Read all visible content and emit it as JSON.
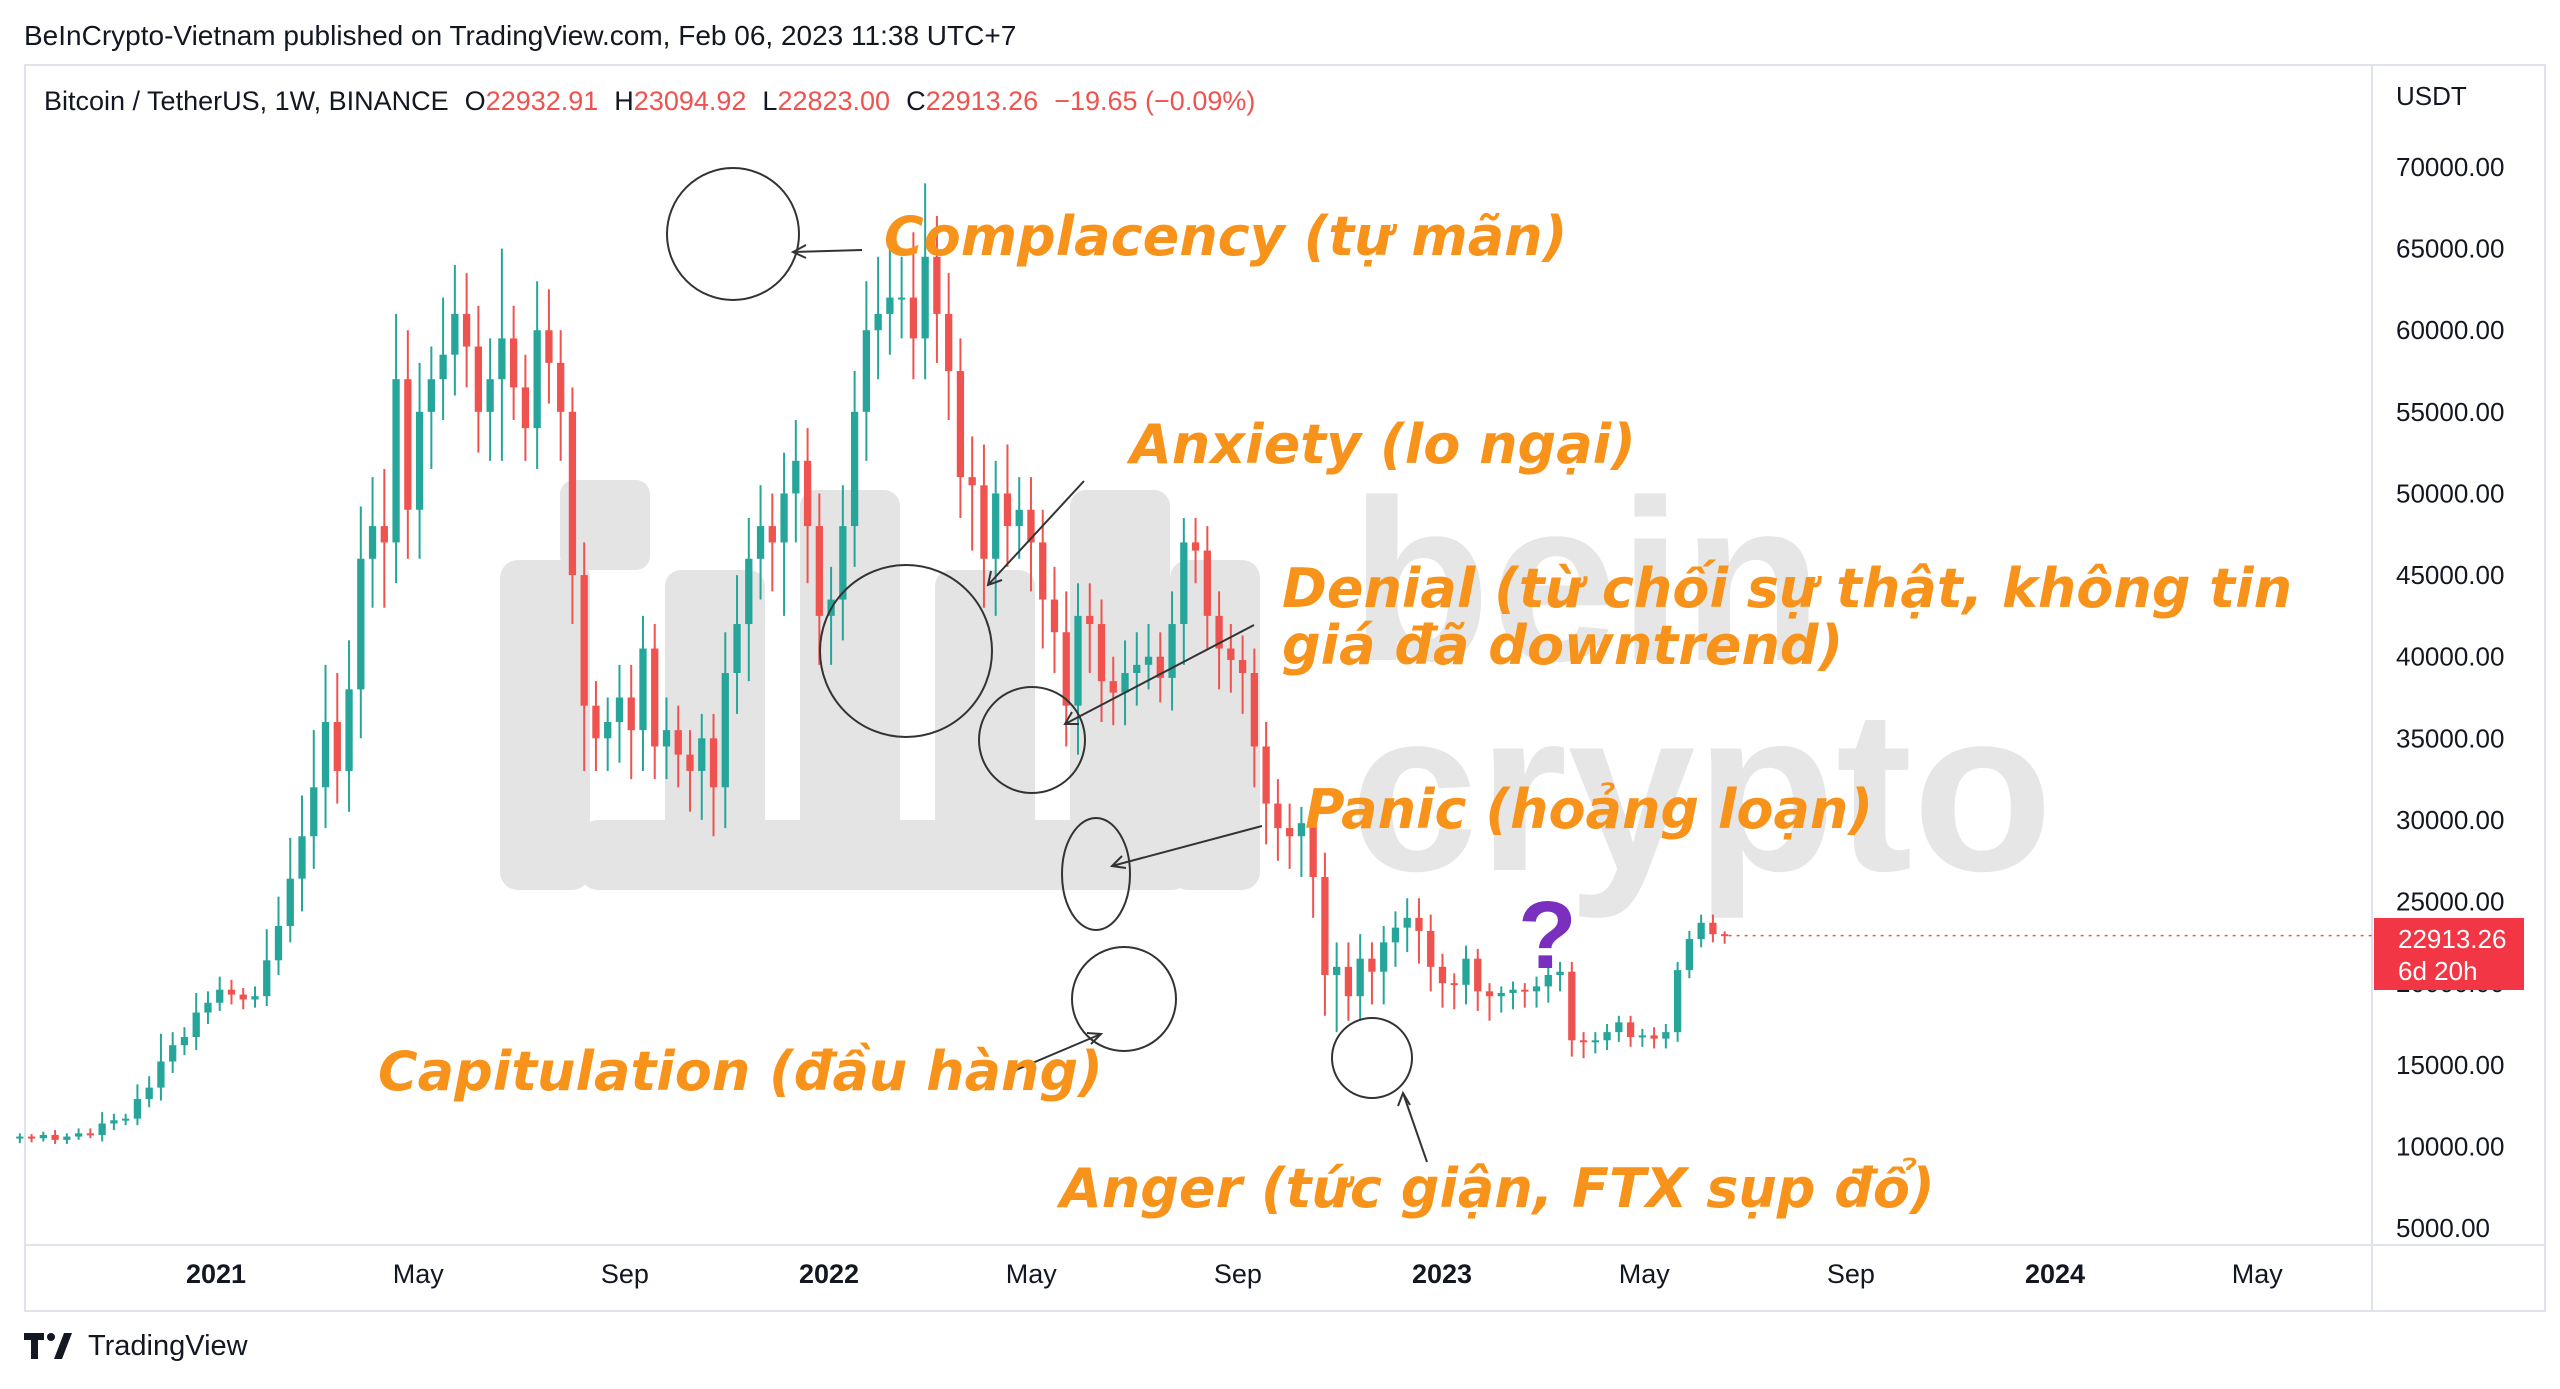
{
  "publisher_line": "BeInCrypto-Vietnam published on TradingView.com, Feb 06, 2023 11:38 UTC+7",
  "legend": {
    "symbol": "Bitcoin / TetherUS, 1W, BINANCE",
    "open_key": "O",
    "open": "22932.91",
    "high_key": "H",
    "high": "23094.92",
    "low_key": "L",
    "low": "22823.00",
    "close_key": "C",
    "close": "22913.26",
    "change": "−19.65 (−0.09%)"
  },
  "footer_brand": "TradingView",
  "watermark": {
    "top": "bein",
    "bottom": "crypto"
  },
  "colors": {
    "up": "#26a69a",
    "down": "#ef5350",
    "annotation": "#f7931a",
    "question": "#7b2fbe",
    "price_tag": "#f23645"
  },
  "chart_data": {
    "type": "candlestick",
    "currency": "USDT",
    "ylim": [
      3000,
      74000
    ],
    "y_ticks": [
      "70000.00",
      "65000.00",
      "60000.00",
      "55000.00",
      "50000.00",
      "45000.00",
      "40000.00",
      "35000.00",
      "30000.00",
      "25000.00",
      "20000.00",
      "15000.00",
      "10000.00",
      "5000.00"
    ],
    "x_ticks": [
      {
        "label": "2021",
        "bold": true,
        "t": 2021.0
      },
      {
        "label": "May",
        "bold": false,
        "t": 2021.33
      },
      {
        "label": "Sep",
        "bold": false,
        "t": 2021.667
      },
      {
        "label": "2022",
        "bold": true,
        "t": 2022.0
      },
      {
        "label": "May",
        "bold": false,
        "t": 2022.33
      },
      {
        "label": "Sep",
        "bold": false,
        "t": 2022.667
      },
      {
        "label": "2023",
        "bold": true,
        "t": 2023.0
      },
      {
        "label": "May",
        "bold": false,
        "t": 2023.33
      },
      {
        "label": "Sep",
        "bold": false,
        "t": 2023.667
      },
      {
        "label": "2024",
        "bold": true,
        "t": 2024.0
      },
      {
        "label": "May",
        "bold": false,
        "t": 2024.33
      }
    ],
    "first_candle_t": 2020.68,
    "candle_step": 0.01918,
    "closes": [
      10600,
      10500,
      10700,
      10400,
      10600,
      10800,
      10700,
      11400,
      11600,
      11700,
      12900,
      13600,
      15200,
      16200,
      16700,
      18200,
      18800,
      19600,
      19300,
      19000,
      19200,
      21400,
      23500,
      26400,
      29000,
      32000,
      36000,
      33000,
      38000,
      46000,
      48000,
      47000,
      57000,
      49000,
      55000,
      57000,
      58500,
      61000,
      59000,
      55000,
      57000,
      59500,
      56500,
      54000,
      60000,
      58000,
      55000,
      45000,
      37000,
      35000,
      36000,
      37500,
      35500,
      40500,
      34500,
      35500,
      34000,
      33000,
      35000,
      32000,
      39000,
      42000,
      46000,
      48000,
      47000,
      50000,
      52000,
      48000,
      42500,
      43500,
      48000,
      55000,
      60000,
      61000,
      62000,
      62000,
      59500,
      64500,
      61000,
      57500,
      51000,
      50500,
      46000,
      50000,
      48000,
      49000,
      47000,
      43500,
      41500,
      37000,
      42500,
      42000,
      38500,
      37800,
      39000,
      39500,
      40000,
      38700,
      42000,
      47000,
      46500,
      42500,
      40500,
      39800,
      39000,
      34500,
      31000,
      29500,
      29000,
      29800,
      26500,
      20500,
      21000,
      19200,
      21500,
      20700,
      22500,
      23400,
      24000,
      23200,
      21000,
      20000,
      19900,
      21500,
      19500,
      19200,
      19400,
      19600,
      19500,
      19800,
      20500,
      20700,
      16500,
      16400,
      16500,
      17000,
      17600,
      16700,
      16800,
      16600,
      17000,
      20800,
      22700,
      23700,
      23000,
      22913.26
    ],
    "wick_up": [
      200,
      150,
      200,
      300,
      200,
      300,
      300,
      700,
      400,
      300,
      900,
      700,
      1700,
      800,
      600,
      1200,
      700,
      800,
      600,
      400,
      600,
      1900,
      1800,
      2500,
      2500,
      3500,
      3500,
      3000,
      3000,
      3200,
      3000,
      3500,
      4000,
      3000,
      3000,
      2000,
      3500,
      3000,
      2500,
      2500,
      2500,
      5500,
      2000,
      2000,
      3000,
      2500,
      2000,
      1500,
      2000,
      1500,
      1500,
      2000,
      2000,
      2000,
      1500,
      2000,
      1500,
      1500,
      1500,
      1500,
      2500,
      3000,
      2500,
      2500,
      2000,
      2500,
      2500,
      2000,
      2000,
      2000,
      2500,
      2500,
      3000,
      3500,
      3000,
      2500,
      4000,
      4500,
      2500,
      2500,
      2000,
      2500,
      2500,
      2000,
      3000,
      2000,
      2000,
      2000,
      2000,
      2500,
      2000,
      2000,
      1500,
      1500,
      2000,
      2000,
      2000,
      1500,
      2000,
      1500,
      1500,
      1500,
      1500,
      1500,
      1500,
      1500,
      1500,
      1500,
      1500,
      1000,
      1500,
      1500,
      1500,
      1500,
      1500,
      1000,
      1000,
      1000,
      1200,
      1200,
      1000,
      800,
      600,
      800,
      600,
      500,
      400,
      500,
      400,
      600,
      600,
      600,
      600,
      500,
      500,
      500,
      400,
      400,
      400,
      500,
      500,
      500,
      500,
      500,
      500,
      180
    ],
    "wick_dn": [
      300,
      250,
      200,
      250,
      250,
      200,
      200,
      400,
      400,
      300,
      400,
      500,
      800,
      700,
      600,
      800,
      700,
      500,
      600,
      600,
      500,
      600,
      900,
      1000,
      2000,
      2000,
      2500,
      2000,
      2500,
      3000,
      3000,
      4000,
      2500,
      3000,
      3000,
      3500,
      2500,
      2500,
      2500,
      2500,
      3000,
      5000,
      2000,
      2000,
      2500,
      2500,
      3000,
      3000,
      4000,
      2000,
      2000,
      2500,
      3000,
      2500,
      2000,
      2000,
      2000,
      2500,
      3000,
      3000,
      2500,
      2500,
      3500,
      2500,
      3000,
      4500,
      3000,
      3500,
      3000,
      3000,
      2500,
      2500,
      3000,
      3000,
      2500,
      2500,
      2500,
      2500,
      3000,
      3000,
      2500,
      4000,
      3000,
      3500,
      2500,
      2000,
      3000,
      3000,
      2500,
      2500,
      3000,
      3000,
      2500,
      2000,
      2000,
      2000,
      1500,
      1500,
      2000,
      2500,
      2000,
      2000,
      2500,
      2000,
      2500,
      2500,
      2500,
      2000,
      2000,
      2500,
      2500,
      2500,
      3500,
      1500,
      1500,
      2000,
      2000,
      1500,
      1500,
      2000,
      1500,
      1500,
      1500,
      1200,
      1200,
      1500,
      1000,
      1000,
      1000,
      1000,
      1000,
      1000,
      1000,
      1000,
      700,
      600,
      600,
      600,
      600,
      600,
      600,
      600,
      500,
      500,
      500,
      500,
      90
    ]
  },
  "price_tag": {
    "price": "22913.26",
    "countdown": "6d 20h"
  },
  "annotations": {
    "complacency": "Complacency (tự mãn)",
    "anxiety": "Anxiety (lo ngại)",
    "denial_line1": "Denial (từ chối sự thật, không tin",
    "denial_line2": "giá đã downtrend)",
    "panic": "Panic (hoảng loạn)",
    "capitulation": "Capitulation (đầu hàng)",
    "anger": "Anger (tức giận, FTX sụp đổ)",
    "question": "?"
  }
}
